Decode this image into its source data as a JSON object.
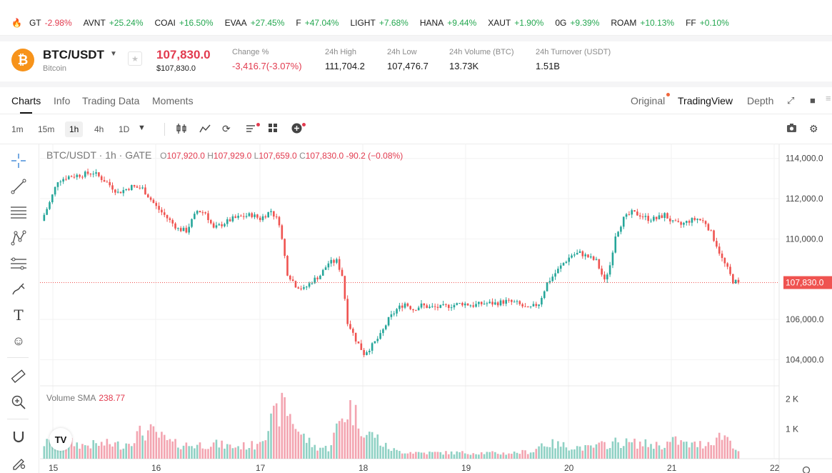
{
  "tickers": [
    {
      "symbol": "GT",
      "change": "-2.98%",
      "dir": "down"
    },
    {
      "symbol": "AVNT",
      "change": "+25.24%",
      "dir": "up"
    },
    {
      "symbol": "COAI",
      "change": "+16.50%",
      "dir": "up"
    },
    {
      "symbol": "EVAA",
      "change": "+27.45%",
      "dir": "up"
    },
    {
      "symbol": "F",
      "change": "+47.04%",
      "dir": "up"
    },
    {
      "symbol": "LIGHT",
      "change": "+7.68%",
      "dir": "up"
    },
    {
      "symbol": "HANA",
      "change": "+9.44%",
      "dir": "up"
    },
    {
      "symbol": "XAUT",
      "change": "+1.90%",
      "dir": "up"
    },
    {
      "symbol": "0G",
      "change": "+9.39%",
      "dir": "up"
    },
    {
      "symbol": "ROAM",
      "change": "+10.13%",
      "dir": "up"
    },
    {
      "symbol": "FF",
      "change": "+0.10%",
      "dir": "up"
    }
  ],
  "header": {
    "pair": "BTC/USDT",
    "coin_name": "Bitcoin",
    "coin_icon": "bitcoin-icon",
    "last_price": "107,830.0",
    "last_price_usd": "$107,830.0",
    "stats": {
      "change_label": "Change %",
      "change_value": "-3,416.7(-3.07%)",
      "high_label": "24h High",
      "high_value": "111,704.2",
      "low_label": "24h Low",
      "low_value": "107,476.7",
      "volume_label": "24h Volume (BTC)",
      "volume_value": "13.73K",
      "turnover_label": "24h Turnover (USDT)",
      "turnover_value": "1.51B"
    }
  },
  "tabs": {
    "charts": "Charts",
    "info": "Info",
    "trading_data": "Trading Data",
    "moments": "Moments",
    "original": "Original",
    "tradingview": "TradingView",
    "depth": "Depth"
  },
  "toolbar": {
    "timeframes": [
      "1m",
      "15m",
      "1h",
      "4h",
      "1D"
    ],
    "active_timeframe": "1h"
  },
  "colors": {
    "up": "#26a69a",
    "down": "#ef5350",
    "accent_red": "#e23b4f",
    "accent_green": "#25a750"
  },
  "chart": {
    "legend_title": "BTC/USDT · 1h · GATE",
    "o_label": "O",
    "o_value": "107,920.0",
    "h_label": "H",
    "h_value": "107,929.0",
    "l_label": "L",
    "l_value": "107,659.0",
    "c_label": "C",
    "c_value": "107,830.0",
    "change": "-90.2 (−0.08%)",
    "volume_label": "Volume SMA",
    "volume_value": "238.77",
    "price_label": "107,830.0",
    "tv_logo": "TV"
  },
  "chart_data": {
    "type": "candlestick",
    "ylim": [
      102700,
      114700
    ],
    "y_ticks": [
      "114,000.0",
      "112,000.0",
      "110,000.0",
      "106,000.0",
      "104,000.0"
    ],
    "y_tick_values": [
      114000,
      112000,
      110000,
      106000,
      104000
    ],
    "x_ticks": [
      "15",
      "16",
      "17",
      "18",
      "19",
      "20",
      "21",
      "22"
    ],
    "volume_ticks": [
      "2 K",
      "1 K"
    ],
    "volume_tick_values": [
      2000,
      1000
    ],
    "last_price": 107830,
    "path": [
      [
        0,
        110900
      ],
      [
        3,
        111800
      ],
      [
        6,
        112900
      ],
      [
        10,
        113100
      ],
      [
        15,
        113200
      ],
      [
        19,
        113300
      ],
      [
        24,
        112800
      ],
      [
        28,
        112300
      ],
      [
        33,
        112600
      ],
      [
        37,
        112500
      ],
      [
        42,
        111600
      ],
      [
        47,
        110900
      ],
      [
        50,
        110500
      ],
      [
        53,
        110400
      ],
      [
        57,
        111400
      ],
      [
        60,
        111300
      ],
      [
        63,
        110500
      ],
      [
        67,
        110800
      ],
      [
        70,
        111000
      ],
      [
        73,
        111100
      ],
      [
        77,
        111200
      ],
      [
        80,
        111000
      ],
      [
        84,
        111400
      ],
      [
        87,
        110800
      ],
      [
        90,
        108300
      ],
      [
        93,
        107700
      ],
      [
        96,
        107500
      ],
      [
        99,
        107900
      ],
      [
        102,
        108200
      ],
      [
        105,
        108800
      ],
      [
        108,
        108900
      ],
      [
        110,
        108200
      ],
      [
        112,
        105900
      ],
      [
        115,
        105000
      ],
      [
        118,
        104300
      ],
      [
        121,
        104700
      ],
      [
        124,
        105200
      ],
      [
        127,
        106000
      ],
      [
        130,
        106500
      ],
      [
        133,
        106800
      ],
      [
        136,
        106500
      ],
      [
        139,
        106700
      ],
      [
        142,
        106600
      ],
      [
        146,
        106600
      ],
      [
        150,
        106700
      ],
      [
        154,
        106800
      ],
      [
        158,
        106700
      ],
      [
        162,
        106800
      ],
      [
        166,
        106800
      ],
      [
        170,
        106900
      ],
      [
        174,
        106800
      ],
      [
        178,
        106500
      ],
      [
        182,
        106800
      ],
      [
        185,
        107800
      ],
      [
        188,
        108300
      ],
      [
        191,
        108800
      ],
      [
        194,
        109200
      ],
      [
        197,
        109300
      ],
      [
        200,
        109100
      ],
      [
        203,
        108900
      ],
      [
        206,
        107900
      ],
      [
        208,
        108700
      ],
      [
        210,
        110200
      ],
      [
        213,
        111000
      ],
      [
        216,
        111300
      ],
      [
        219,
        111200
      ],
      [
        222,
        111000
      ],
      [
        225,
        111000
      ],
      [
        228,
        111200
      ],
      [
        231,
        110800
      ],
      [
        234,
        110700
      ],
      [
        237,
        110900
      ],
      [
        240,
        111000
      ],
      [
        243,
        110800
      ],
      [
        245,
        110300
      ],
      [
        247,
        109700
      ],
      [
        249,
        109000
      ],
      [
        251,
        108500
      ],
      [
        253,
        107900
      ],
      [
        255,
        107830
      ]
    ],
    "volume_profile": [
      [
        0,
        500
      ],
      [
        8,
        600
      ],
      [
        15,
        450
      ],
      [
        25,
        500
      ],
      [
        30,
        450
      ],
      [
        36,
        850
      ],
      [
        40,
        900
      ],
      [
        44,
        700
      ],
      [
        48,
        500
      ],
      [
        55,
        450
      ],
      [
        63,
        500
      ],
      [
        70,
        400
      ],
      [
        78,
        450
      ],
      [
        84,
        1200
      ],
      [
        89,
        1800
      ],
      [
        92,
        1300
      ],
      [
        95,
        800
      ],
      [
        100,
        400
      ],
      [
        105,
        350
      ],
      [
        110,
        1400
      ],
      [
        113,
        1700
      ],
      [
        116,
        1300
      ],
      [
        119,
        800
      ],
      [
        122,
        800
      ],
      [
        125,
        450
      ],
      [
        130,
        250
      ],
      [
        140,
        200
      ],
      [
        150,
        200
      ],
      [
        160,
        200
      ],
      [
        170,
        180
      ],
      [
        180,
        250
      ],
      [
        183,
        500
      ],
      [
        186,
        500
      ],
      [
        190,
        450
      ],
      [
        195,
        400
      ],
      [
        200,
        350
      ],
      [
        205,
        450
      ],
      [
        210,
        550
      ],
      [
        220,
        500
      ],
      [
        227,
        450
      ],
      [
        232,
        600
      ],
      [
        237,
        450
      ],
      [
        243,
        500
      ],
      [
        247,
        700
      ],
      [
        250,
        800
      ],
      [
        253,
        500
      ],
      [
        255,
        250
      ]
    ],
    "volume_max": 2300
  }
}
